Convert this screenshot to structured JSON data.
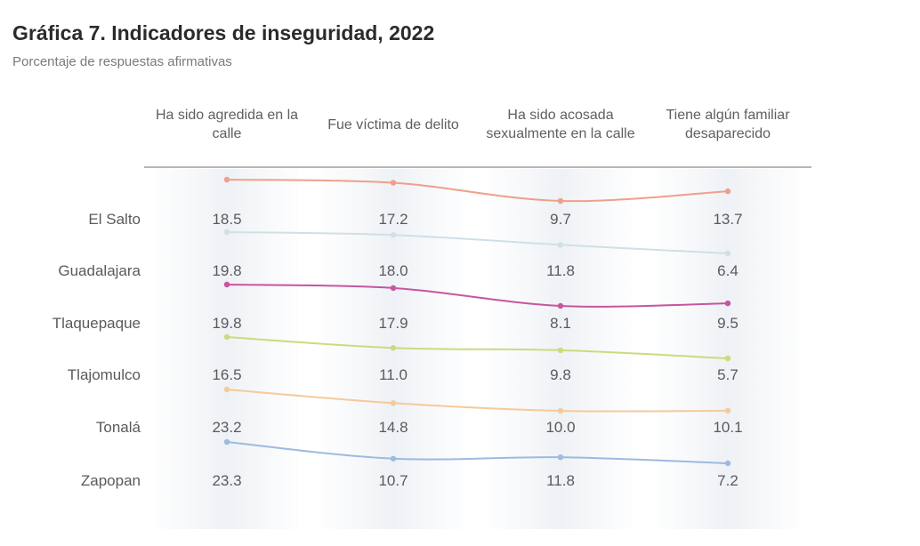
{
  "chart_data": {
    "type": "line",
    "title": "Gráfica 7. Indicadores de inseguridad, 2022",
    "subtitle": "Porcentaje de respuestas afirmativas",
    "categories": [
      "Ha sido agredida en la calle",
      "Fue víctima de delito",
      "Ha sido acosada sexualmente en la calle",
      "Tiene algún familiar desaparecido"
    ],
    "series": [
      {
        "name": "El Salto",
        "values": [
          "18.5",
          "17.2",
          "9.7",
          "13.7"
        ],
        "color": "#ef9f8b"
      },
      {
        "name": "Guadalajara",
        "values": [
          "19.8",
          "18.0",
          "11.8",
          "6.4"
        ],
        "color": "#cfe0e6"
      },
      {
        "name": "Tlaquepaque",
        "values": [
          "19.8",
          "17.9",
          "8.1",
          "9.5"
        ],
        "color": "#c7559f"
      },
      {
        "name": "Tlajomulco",
        "values": [
          "16.5",
          "11.0",
          "9.8",
          "5.7"
        ],
        "color": "#c9dc7c"
      },
      {
        "name": "Tonalá",
        "values": [
          "23.2",
          "14.8",
          "10.0",
          "10.1"
        ],
        "color": "#f6c99a"
      },
      {
        "name": "Zapopan",
        "values": [
          "23.3",
          "10.7",
          "11.8",
          "7.2"
        ],
        "color": "#9dbadf"
      }
    ],
    "grid": false
  }
}
